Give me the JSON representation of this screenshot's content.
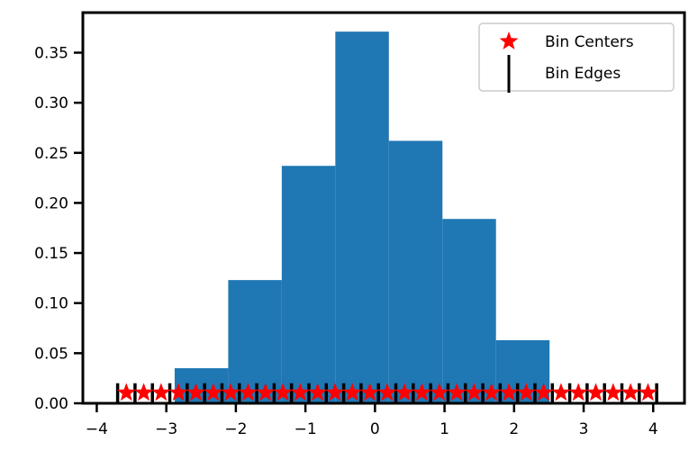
{
  "chart_data": {
    "type": "bar",
    "title": "",
    "xlabel": "",
    "ylabel": "",
    "xlim": [
      -4.2,
      4.45
    ],
    "ylim": [
      0,
      0.39
    ],
    "xticks": [
      -4,
      -3,
      -2,
      -1,
      0,
      1,
      2,
      3,
      4
    ],
    "xtick_labels": [
      "−4",
      "−3",
      "−2",
      "−1",
      "0",
      "1",
      "2",
      "3",
      "4"
    ],
    "yticks": [
      0.0,
      0.05,
      0.1,
      0.15,
      0.2,
      0.25,
      0.3,
      0.35
    ],
    "ytick_labels": [
      "0.00",
      "0.05",
      "0.10",
      "0.15",
      "0.20",
      "0.25",
      "0.30",
      "0.35"
    ],
    "grid": false,
    "histogram": {
      "color": "#1f77b4",
      "bins": [
        {
          "x0": -2.88,
          "x1": -2.11,
          "value": 0.035
        },
        {
          "x0": -2.11,
          "x1": -1.34,
          "value": 0.123
        },
        {
          "x0": -1.34,
          "x1": -0.57,
          "value": 0.237
        },
        {
          "x0": -0.57,
          "x1": 0.2,
          "value": 0.371
        },
        {
          "x0": 0.2,
          "x1": 0.97,
          "value": 0.262
        },
        {
          "x0": 0.97,
          "x1": 1.74,
          "value": 0.184
        },
        {
          "x0": 1.74,
          "x1": 2.51,
          "value": 0.063
        }
      ]
    },
    "bin_edges": {
      "name": "Bin Edges",
      "color": "#000000",
      "x_start": -3.7,
      "x_end": 4.05,
      "count": 32,
      "y": 0.0105,
      "half_height": 0.0095
    },
    "bin_centers": {
      "name": "Bin Centers",
      "color": "#ff0000",
      "x_start": -3.575,
      "x_end": 3.925,
      "count": 31,
      "y": 0.0105
    },
    "legend": {
      "placement": "top-right",
      "entries": [
        "Bin Centers",
        "Bin Edges"
      ]
    }
  }
}
